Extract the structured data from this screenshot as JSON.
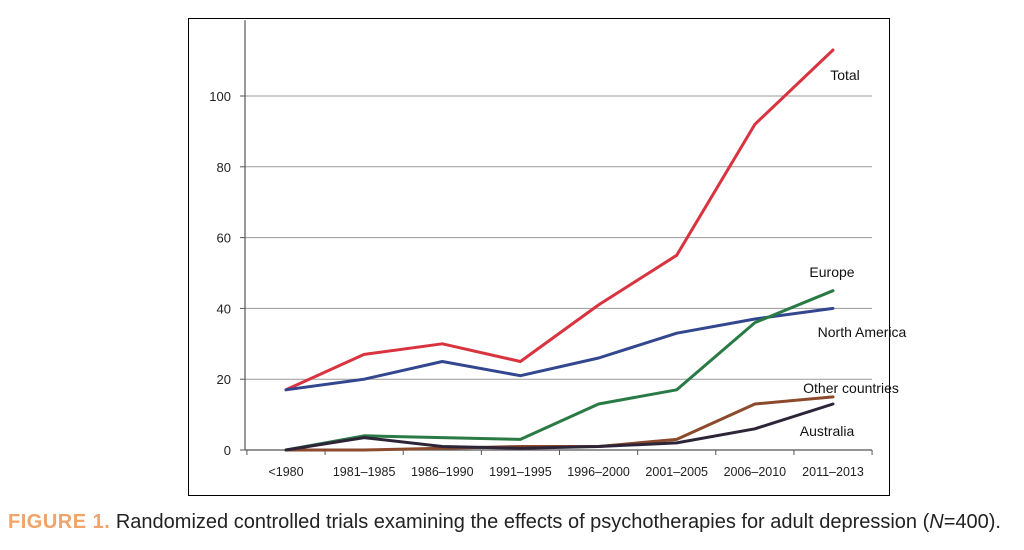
{
  "caption": {
    "label": "FIGURE 1.",
    "text_before_n": " Randomized controlled trials examining the effects of psychotherapies for adult depression (",
    "n_symbol": "N",
    "text_after_n": "=400)."
  },
  "chart_data": {
    "type": "line",
    "title": "",
    "xlabel": "",
    "ylabel": "",
    "categories": [
      "<1980",
      "1981–1985",
      "1986–1990",
      "1991–1995",
      "1996–2000",
      "2001–2005",
      "2006–2010",
      "2011–2013"
    ],
    "ylim": [
      0,
      120
    ],
    "yticks": [
      0,
      20,
      40,
      60,
      80,
      100
    ],
    "grid": "horizontal",
    "colors": {
      "Total": "#d8333f",
      "Europe": "#2a7a46",
      "North America": "#33478f",
      "Other countries": "#8b4a2b",
      "Australia": "#2e2438"
    },
    "series": [
      {
        "name": "Total",
        "values": [
          17,
          27,
          30,
          25,
          41,
          55,
          92,
          113
        ]
      },
      {
        "name": "North America",
        "values": [
          17,
          20,
          25,
          21,
          26,
          33,
          37,
          40
        ]
      },
      {
        "name": "Europe",
        "values": [
          0,
          4,
          3.5,
          3,
          13,
          17,
          36,
          45
        ]
      },
      {
        "name": "Other countries",
        "values": [
          0,
          0,
          0.5,
          1,
          1,
          3,
          13,
          15
        ]
      },
      {
        "name": "Australia",
        "values": [
          0,
          3.5,
          1,
          0.5,
          1,
          2,
          6,
          13
        ]
      }
    ]
  }
}
